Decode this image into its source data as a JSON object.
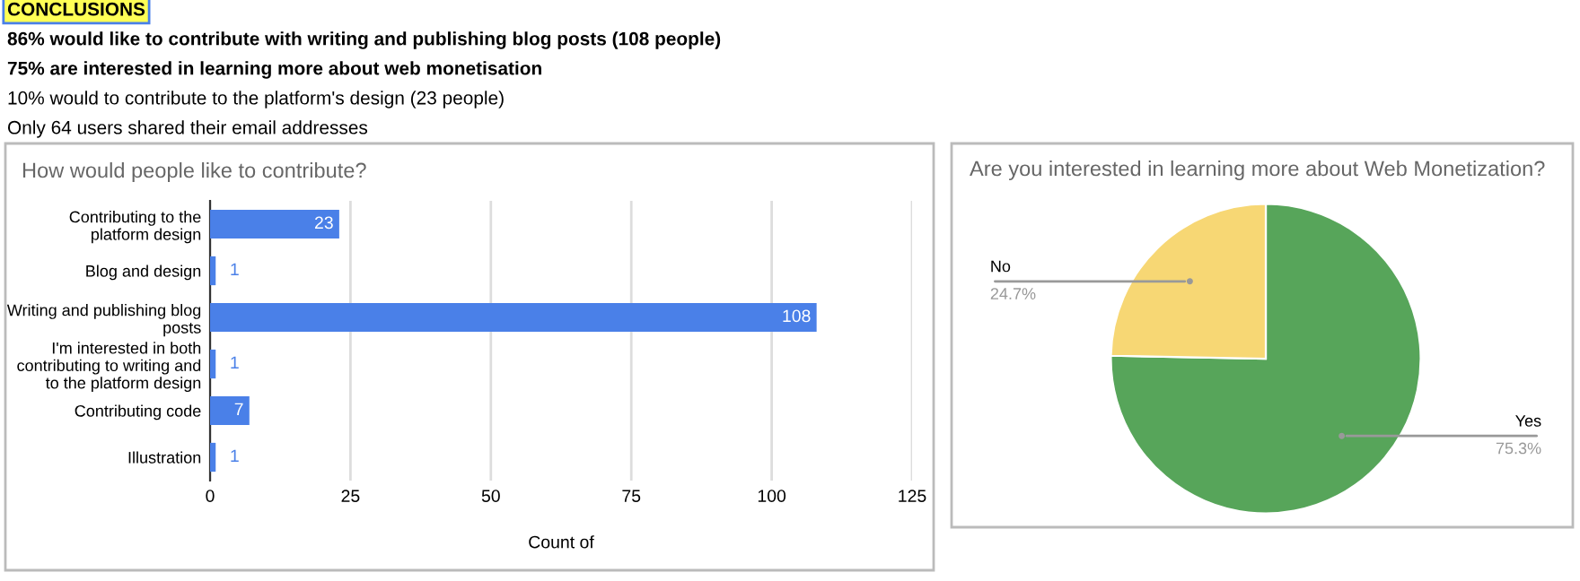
{
  "chart_data": [
    {
      "type": "other",
      "annotations": [
        "CONCLUSIONS",
        "86% would like to contribute with writing and publishing blog posts (108 people)",
        "75% are interested in learning more about web monetisation",
        "10% would to contribute to the platform's design (23 people)",
        "Only 64 users shared their email addresses"
      ]
    },
    {
      "type": "bar",
      "orientation": "horizontal",
      "title": "How would people like to contribute?",
      "xlabel": "Count of",
      "categories": [
        "Contributing to the platform design",
        "Blog and design",
        "Writing and publishing blog posts",
        "I'm interested in both contributing to writing and to the platform design",
        "Contributing code",
        "Illustration"
      ],
      "values": [
        23,
        1,
        108,
        1,
        7,
        1
      ],
      "color": "#4a80e8",
      "data_labels": true,
      "xlim": [
        0,
        125
      ],
      "xticks": [
        0,
        25,
        50,
        75,
        100,
        125
      ],
      "grid": "x"
    },
    {
      "type": "pie",
      "title": "Are you interested in learning more about Web Monetization?",
      "categories": [
        "Yes",
        "No"
      ],
      "values": [
        75.3,
        24.7
      ],
      "colors": [
        "#57a55a",
        "#f7d774"
      ],
      "value_labels": [
        "75.3%",
        "24.7%"
      ]
    }
  ]
}
